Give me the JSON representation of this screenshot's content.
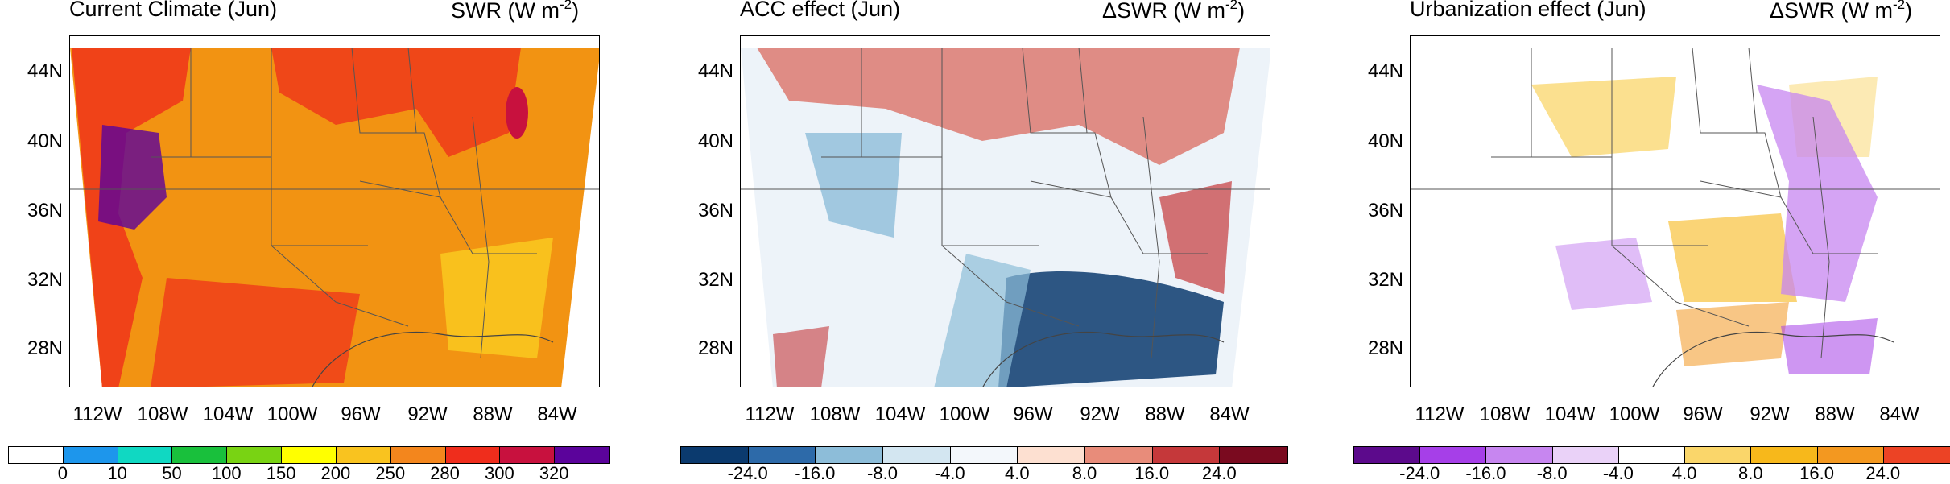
{
  "panels": [
    {
      "title": "Current Climate (Jun)",
      "unit": "SWR (W m",
      "unit_exp": "-2",
      "unit_close": ")",
      "lat_labels": [
        "44N",
        "40N",
        "36N",
        "32N",
        "28N"
      ],
      "lon_labels": [
        "112W",
        "108W",
        "104W",
        "100W",
        "96W",
        "92W",
        "88W",
        "84W"
      ],
      "colorbar": {
        "colors": [
          "#ffffff",
          "#1d96ec",
          "#10d8c2",
          "#19c03c",
          "#79d313",
          "#ffff00",
          "#f9c31f",
          "#f3861d",
          "#ef2d1c",
          "#c8113e",
          "#5b039b"
        ],
        "labels": [
          "0",
          "10",
          "50",
          "100",
          "150",
          "200",
          "250",
          "280",
          "300",
          "320"
        ]
      }
    },
    {
      "title": "ACC effect (Jun)",
      "unit": "ΔSWR (W m",
      "unit_exp": "-2",
      "unit_close": ")",
      "lat_labels": [
        "44N",
        "40N",
        "36N",
        "32N",
        "28N"
      ],
      "lon_labels": [
        "112W",
        "108W",
        "104W",
        "100W",
        "96W",
        "92W",
        "88W",
        "84W"
      ],
      "colorbar": {
        "colors": [
          "#0b3a6e",
          "#2d6aa9",
          "#8dbdd9",
          "#d3e6f1",
          "#f3f7fb",
          "#fde0d1",
          "#e88c7a",
          "#c5383a",
          "#7a0a1f"
        ],
        "labels": [
          "-24.0",
          "-16.0",
          "-8.0",
          "-4.0",
          "4.0",
          "8.0",
          "16.0",
          "24.0"
        ]
      }
    },
    {
      "title": "Urbanization effect (Jun)",
      "unit": "ΔSWR (W m",
      "unit_exp": "-2",
      "unit_close": ")",
      "lat_labels": [
        "44N",
        "40N",
        "36N",
        "32N",
        "28N"
      ],
      "lon_labels": [
        "112W",
        "108W",
        "104W",
        "100W",
        "96W",
        "92W",
        "88W",
        "84W"
      ],
      "colorbar": {
        "colors": [
          "#5c0a8c",
          "#a63fe8",
          "#c786f0",
          "#ead2f8",
          "#ffffff",
          "#fad66a",
          "#f7b81b",
          "#f39820",
          "#ec4325"
        ],
        "labels": [
          "-24.0",
          "-16.0",
          "-8.0",
          "-4.0",
          "4.0",
          "8.0",
          "16.0",
          "24.0"
        ]
      }
    }
  ]
}
